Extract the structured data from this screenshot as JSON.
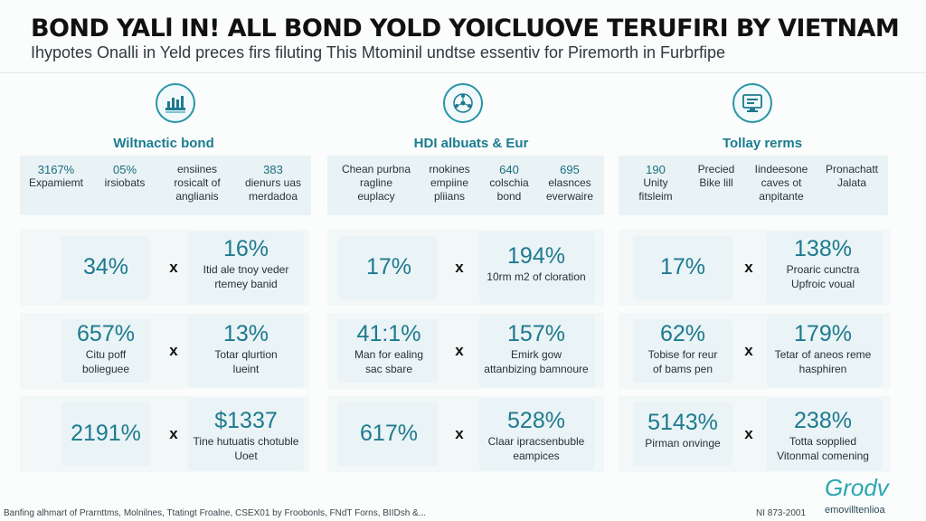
{
  "header": {
    "title": "BOND YALl IN! ALL BOND YOLD YOICLUOVE TERUFIRI BY VIETNAM",
    "subtitle": "Ihypotes Onalli in Yeld preces firs filuting This Mtominil undtse essentiv for Piremorth in Furbrfipe"
  },
  "panels": [
    {
      "icon": "bond-chart-icon",
      "heading": "Wiltnactic bond",
      "summary": [
        {
          "value": "3167%",
          "label": "Expamiemt"
        },
        {
          "value": "05%",
          "label": "irsiobats"
        },
        {
          "value": "",
          "label": "ensiines\nrosicalt of\nanglianis"
        },
        {
          "value": "383",
          "label": "dienurs uas\nmerdadoa"
        }
      ],
      "rows": [
        {
          "left_value": "34%",
          "left_note": "",
          "sep": "x",
          "right_value": "16%",
          "right_note": "Itid ale tnoy veder\nrtemey banid"
        },
        {
          "left_value": "657%",
          "left_note": "Citu poff\nbolieguee",
          "sep": "x",
          "right_value": "13%",
          "right_note": "Totar qlurtion\nlueint"
        },
        {
          "left_value": "2191%",
          "left_note": "",
          "sep": "x",
          "right_value": "$1337",
          "right_note": "Tine hutuatis chotuble\nUoet"
        }
      ]
    },
    {
      "icon": "network-globe-icon",
      "heading": "HDI albuats & Eur",
      "summary": [
        {
          "value": "",
          "label": "Chean purbna\nragline\neuplacy"
        },
        {
          "value": "",
          "label": "rnokines\nempiine\npliians"
        },
        {
          "value": "640",
          "label": "colschia\nbond"
        },
        {
          "value": "695",
          "label": "elasnces\neverwaire"
        }
      ],
      "rows": [
        {
          "left_value": "17%",
          "left_note": "",
          "sep": "x",
          "right_value": "194%",
          "right_note": "10rm m2 of cloration"
        },
        {
          "left_value": "41:1%",
          "left_note": "Man for ealing\nsac sbare",
          "sep": "x",
          "right_value": "157%",
          "right_note": "Emirk gow\nattanbizing bamnoure"
        },
        {
          "left_value": "617%",
          "left_note": "",
          "sep": "x",
          "right_value": "528%",
          "right_note": "Claar ipracsenbuble\neampices"
        }
      ]
    },
    {
      "icon": "monitor-document-icon",
      "heading": "Tollay rerms",
      "summary": [
        {
          "value": "190",
          "label": "Unity\nfitsleim"
        },
        {
          "value": "",
          "label": "Precied\nBike lill"
        },
        {
          "value": "",
          "label": "Iindeesone\ncaves ot\nanpitante"
        },
        {
          "value": "",
          "label": "Pronachatt\nJalata"
        }
      ],
      "rows": [
        {
          "left_value": "17%",
          "left_note": "",
          "sep": "x",
          "right_value": "138%",
          "right_note": "Proaric cunctra\nUpfroic voual"
        },
        {
          "left_value": "62%",
          "left_note": "Tobise for reur\nof bams pen",
          "sep": "x",
          "right_value": "179%",
          "right_note": "Tetar of aneos reme\nhasphiren"
        },
        {
          "left_value": "5143%",
          "left_note": "Pirman onvinge",
          "sep": "x",
          "right_value": "238%",
          "right_note": "Totta sopplied\nVitonmal comening"
        }
      ]
    }
  ],
  "footer": {
    "credits": "Banfing alhmart of Prarnttms, Molnilnes, Ttatingt Froalne, CSEX01 by Froobonls, FNdT Forns, BIIDsh &...",
    "code": "NI 873-2001",
    "brand": "Grodv",
    "brand_sub": "emovilltenlioa"
  },
  "colors": {
    "accent": "#1d7a8f",
    "panel_bg": "#eaf3f5",
    "brand": "#2aa7b2"
  }
}
